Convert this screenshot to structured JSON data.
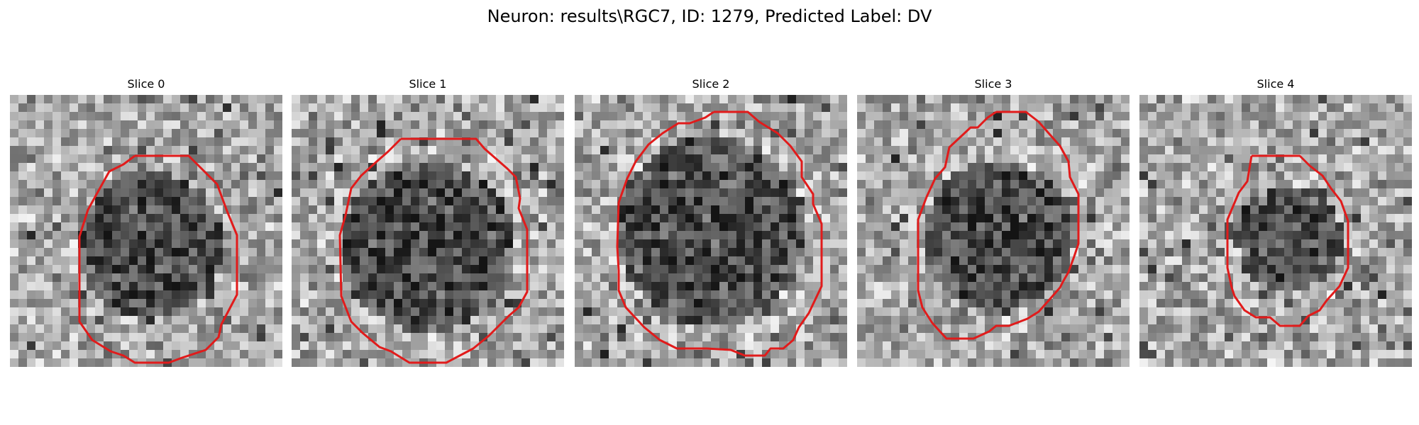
{
  "figure": {
    "title": "Neuron: results\\RGC7, ID: 1279, Predicted Label: DV"
  },
  "colors": {
    "contour": "#e11b1b"
  },
  "slices": [
    {
      "label": "Slice 0"
    },
    {
      "label": "Slice 1"
    },
    {
      "label": "Slice 2"
    },
    {
      "label": "Slice 3"
    },
    {
      "label": "Slice 4"
    }
  ]
}
